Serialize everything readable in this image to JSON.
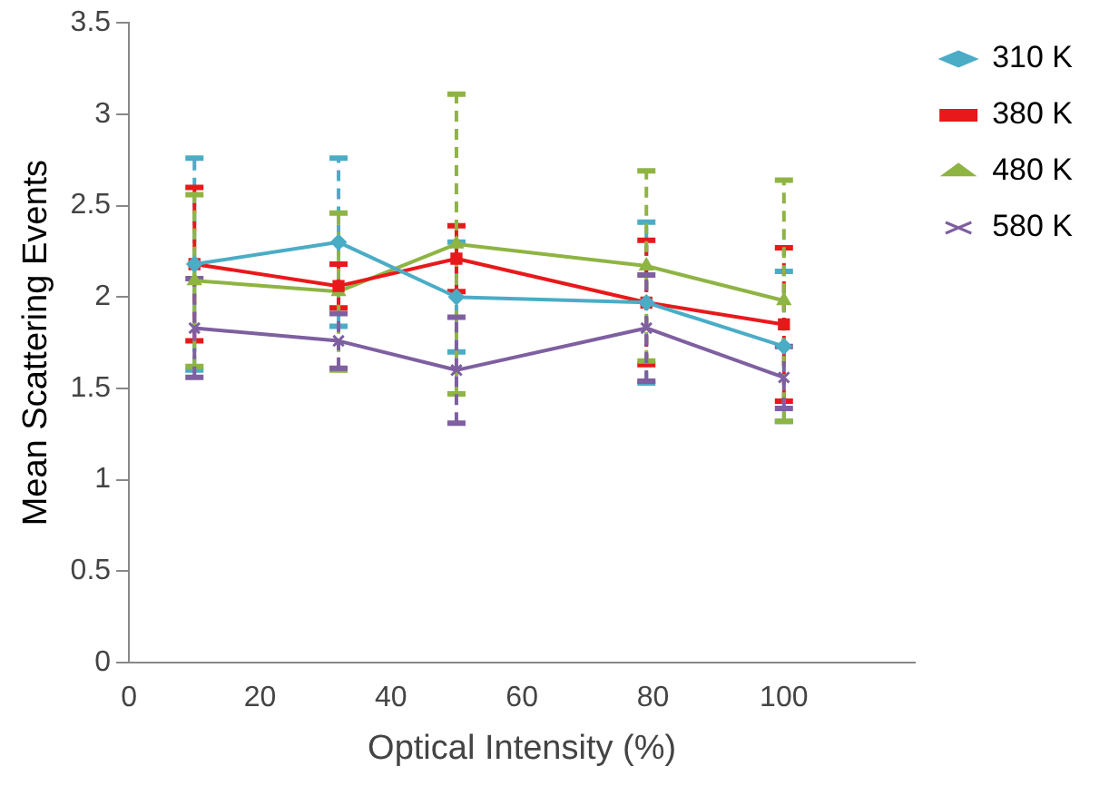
{
  "chart_data": {
    "type": "line",
    "xlabel": "Optical Intensity (%)",
    "ylabel": "Mean Scattering Events",
    "x": [
      10,
      32,
      50,
      79,
      100
    ],
    "xlim": [
      0,
      120
    ],
    "xticks": [
      0,
      20,
      40,
      60,
      80,
      100
    ],
    "ylim": [
      0,
      3.5
    ],
    "yticks": [
      0,
      0.5,
      1,
      1.5,
      2,
      2.5,
      3,
      3.5
    ],
    "grid": false,
    "legend": "right",
    "series": [
      {
        "name": "310 K",
        "color": "#4bacc6",
        "marker": "diamond",
        "values": [
          2.18,
          2.3,
          2.0,
          1.97,
          1.73
        ],
        "errors": [
          0.58,
          0.46,
          0.3,
          0.44,
          0.41
        ]
      },
      {
        "name": "380 K",
        "color": "#e8191b",
        "marker": "square",
        "values": [
          2.18,
          2.06,
          2.21,
          1.97,
          1.85
        ],
        "errors": [
          0.42,
          0.12,
          0.18,
          0.34,
          0.42
        ]
      },
      {
        "name": "480 K",
        "color": "#8eb443",
        "marker": "triangle",
        "values": [
          2.09,
          2.03,
          2.29,
          2.17,
          1.98
        ],
        "errors": [
          0.47,
          0.43,
          0.82,
          0.52,
          0.66
        ]
      },
      {
        "name": "580 K",
        "color": "#7e5fa0",
        "marker": "cross",
        "values": [
          1.83,
          1.76,
          1.6,
          1.83,
          1.56
        ],
        "errors": [
          0.27,
          0.15,
          0.29,
          0.29,
          0.17
        ]
      }
    ]
  }
}
